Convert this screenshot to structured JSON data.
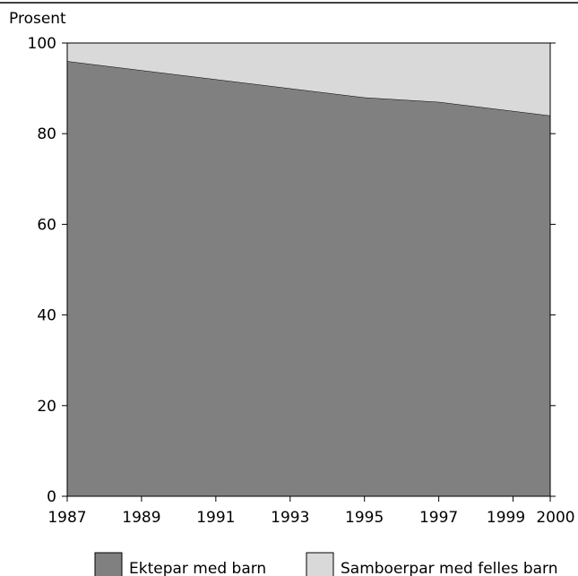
{
  "chart_data": {
    "type": "area",
    "stacked": true,
    "title": "",
    "ylabel": "Prosent",
    "xlabel": "",
    "x": [
      1987,
      1995,
      1997,
      2000
    ],
    "xticks": [
      "1987",
      "1989",
      "1991",
      "1993",
      "1995",
      "1997",
      "1999",
      "2000"
    ],
    "yticks": [
      "0",
      "20",
      "40",
      "60",
      "80",
      "100"
    ],
    "ylim": [
      0,
      100
    ],
    "xlim": [
      1987,
      2000
    ],
    "grid": false,
    "legend_position": "bottom",
    "series": [
      {
        "name": "Ektepar med barn",
        "values": [
          96,
          88,
          87,
          84
        ],
        "color": "#808080"
      },
      {
        "name": "Samboerpar med felles barn",
        "values": [
          4,
          12,
          13,
          16
        ],
        "color": "#d9d9d9"
      }
    ]
  }
}
